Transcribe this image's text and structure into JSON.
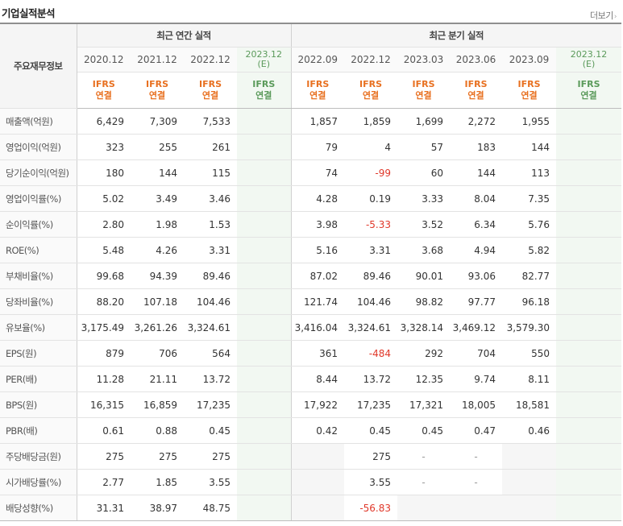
{
  "header": {
    "title": "기업실적분석",
    "more_label": "더보기"
  },
  "table": {
    "label_header": "주요재무정보",
    "annual_title": "최근 연간 실적",
    "quarter_title": "최근 분기 실적",
    "periods": [
      "2020.12",
      "2021.12",
      "2022.12",
      "2023.12(E)",
      "2022.09",
      "2022.12",
      "2023.03",
      "2023.06",
      "2023.09",
      "2023.12(E)"
    ],
    "ifrs_top": "IFRS",
    "ifrs_bottom": "연결",
    "rows": [
      {
        "label": "매출액(억원)",
        "vals": [
          "6,429",
          "7,309",
          "7,533",
          "",
          "1,857",
          "1,859",
          "1,699",
          "2,272",
          "1,955",
          ""
        ]
      },
      {
        "label": "영업이익(억원)",
        "vals": [
          "323",
          "255",
          "261",
          "",
          "79",
          "4",
          "57",
          "183",
          "144",
          ""
        ]
      },
      {
        "label": "당기순이익(억원)",
        "vals": [
          "180",
          "144",
          "115",
          "",
          "74",
          "-99",
          "60",
          "144",
          "113",
          ""
        ]
      },
      {
        "label": "영업이익률(%)",
        "vals": [
          "5.02",
          "3.49",
          "3.46",
          "",
          "4.28",
          "0.19",
          "3.33",
          "8.04",
          "7.35",
          ""
        ]
      },
      {
        "label": "순이익률(%)",
        "vals": [
          "2.80",
          "1.98",
          "1.53",
          "",
          "3.98",
          "-5.33",
          "3.52",
          "6.34",
          "5.76",
          ""
        ]
      },
      {
        "label": "ROE(%)",
        "vals": [
          "5.48",
          "4.26",
          "3.31",
          "",
          "5.16",
          "3.31",
          "3.68",
          "4.94",
          "5.82",
          ""
        ]
      },
      {
        "label": "부채비율(%)",
        "vals": [
          "99.68",
          "94.39",
          "89.46",
          "",
          "87.02",
          "89.46",
          "90.01",
          "93.06",
          "82.77",
          ""
        ]
      },
      {
        "label": "당좌비율(%)",
        "vals": [
          "88.20",
          "107.18",
          "104.46",
          "",
          "121.74",
          "104.46",
          "98.82",
          "97.77",
          "96.18",
          ""
        ]
      },
      {
        "label": "유보율(%)",
        "vals": [
          "3,175.49",
          "3,261.26",
          "3,324.61",
          "",
          "3,416.04",
          "3,324.61",
          "3,328.14",
          "3,469.12",
          "3,579.30",
          ""
        ]
      },
      {
        "label": "EPS(원)",
        "vals": [
          "879",
          "706",
          "564",
          "",
          "361",
          "-484",
          "292",
          "704",
          "550",
          ""
        ]
      },
      {
        "label": "PER(배)",
        "vals": [
          "11.28",
          "21.11",
          "13.72",
          "",
          "8.44",
          "13.72",
          "12.35",
          "9.74",
          "8.11",
          ""
        ]
      },
      {
        "label": "BPS(원)",
        "vals": [
          "16,315",
          "16,859",
          "17,235",
          "",
          "17,922",
          "17,235",
          "17,321",
          "18,005",
          "18,581",
          ""
        ]
      },
      {
        "label": "PBR(배)",
        "vals": [
          "0.61",
          "0.88",
          "0.45",
          "",
          "0.42",
          "0.45",
          "0.45",
          "0.47",
          "0.46",
          ""
        ]
      },
      {
        "label": "주당배당금(원)",
        "vals": [
          "275",
          "275",
          "275",
          "",
          "",
          "275",
          "-",
          "-",
          "",
          ""
        ]
      },
      {
        "label": "시가배당률(%)",
        "vals": [
          "2.77",
          "1.85",
          "3.55",
          "",
          "",
          "3.55",
          "-",
          "-",
          "",
          ""
        ]
      },
      {
        "label": "배당성향(%)",
        "vals": [
          "31.31",
          "38.97",
          "48.75",
          "",
          "",
          "-56.83",
          "",
          "",
          "",
          ""
        ]
      }
    ]
  },
  "colors": {
    "negative": "#e0382a",
    "ifrs": "#e87020",
    "estimate_bg": "#f2f8f2",
    "estimate_text": "#5a9a5a"
  }
}
